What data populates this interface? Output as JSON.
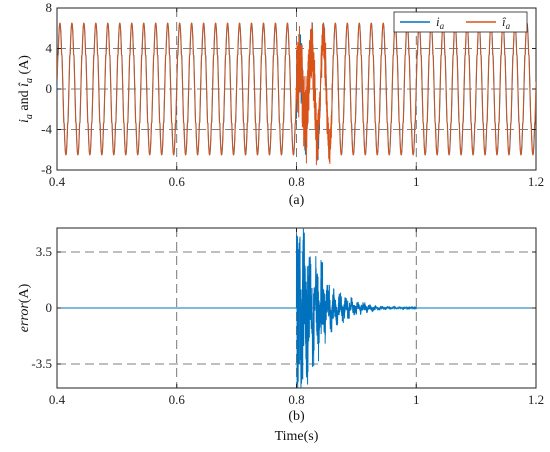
{
  "chart_data": [
    {
      "type": "line",
      "subplot_label": "(a)",
      "title": "",
      "xlabel": "",
      "ylabel_parts": [
        "i",
        "a",
        " and ",
        "î",
        "a",
        " (A)"
      ],
      "xlim": [
        0.4,
        1.2
      ],
      "ylim": [
        -8,
        8
      ],
      "xticks": [
        0.4,
        0.6,
        0.8,
        1,
        1.2
      ],
      "xtick_labels": [
        "0.4",
        "0.6",
        "0.8",
        "1",
        "1.2"
      ],
      "yticks": [
        -8,
        -4,
        0,
        4,
        8
      ],
      "ytick_labels": [
        "-8",
        "-4",
        "0",
        "4",
        "8"
      ],
      "grid": true,
      "legend": "top-right",
      "series": [
        {
          "name": "i_a",
          "legend_main": "i",
          "legend_sub": "a",
          "color": "#0072BD",
          "signal": {
            "amplitude": 6.5,
            "frequency_hz": 50,
            "shape": "sinusoid with plateau near ±3.3",
            "disturbance_start": 0.8,
            "disturbance_end": 0.84
          }
        },
        {
          "name": "î_a",
          "legend_main": "î",
          "legend_sub": "a",
          "color": "#D95319",
          "signal": {
            "amplitude": 6.5,
            "frequency_hz": 50,
            "shape": "sinusoid with plateau near ±3.3",
            "disturbance_start": 0.8,
            "disturbance_end": 0.86
          }
        }
      ]
    },
    {
      "type": "line",
      "subplot_label": "(b)",
      "title": "",
      "xlabel": "Time(s)",
      "ylabel_parts": [
        "error",
        "(A)"
      ],
      "xlim": [
        0.4,
        1.2
      ],
      "ylim": [
        -5,
        5
      ],
      "xticks": [
        0.4,
        0.6,
        0.8,
        1,
        1.2
      ],
      "xtick_labels": [
        "0.4",
        "0.6",
        "0.8",
        "1",
        "1.2"
      ],
      "yticks": [
        -3.5,
        0,
        3.5
      ],
      "ytick_labels": [
        "-3.5",
        "0",
        "3.5"
      ],
      "grid": true,
      "series": [
        {
          "name": "error",
          "color": "#0072BD",
          "signal": {
            "baseline": 0,
            "burst_start": 0.8,
            "peak": 4.6,
            "trough": -5,
            "decay_end": 1.0
          }
        }
      ]
    }
  ]
}
